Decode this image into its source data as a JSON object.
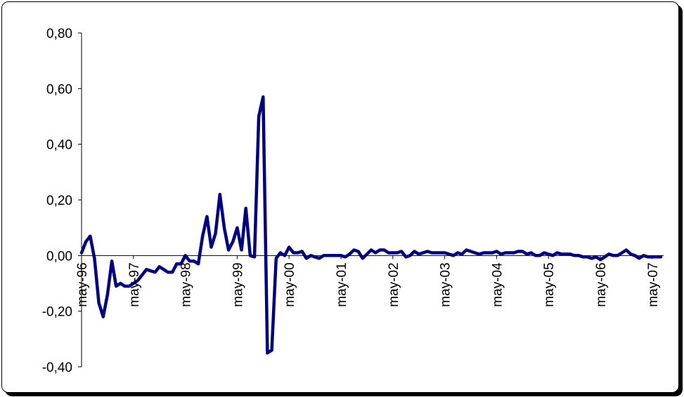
{
  "chart_data": {
    "type": "line",
    "title": "",
    "xlabel": "",
    "ylabel": "",
    "ylim": [
      -0.4,
      0.8
    ],
    "yticks": [
      {
        "value": 0.8,
        "label": "0,80"
      },
      {
        "value": 0.6,
        "label": "0,60"
      },
      {
        "value": 0.4,
        "label": "0,40"
      },
      {
        "value": 0.2,
        "label": "0,20"
      },
      {
        "value": 0.0,
        "label": "0,00"
      },
      {
        "value": -0.2,
        "label": "-0,20"
      },
      {
        "value": -0.4,
        "label": "-0,40"
      }
    ],
    "xticks": [
      {
        "index": 0,
        "label": "may-96"
      },
      {
        "index": 12,
        "label": "may-97"
      },
      {
        "index": 24,
        "label": "may-98"
      },
      {
        "index": 36,
        "label": "may-99"
      },
      {
        "index": 48,
        "label": "may-00"
      },
      {
        "index": 60,
        "label": "may-01"
      },
      {
        "index": 72,
        "label": "may-02"
      },
      {
        "index": 84,
        "label": "may-03"
      },
      {
        "index": 96,
        "label": "may-04"
      },
      {
        "index": 108,
        "label": "may-05"
      },
      {
        "index": 120,
        "label": "may-06"
      },
      {
        "index": 132,
        "label": "may-07"
      }
    ],
    "grid": false,
    "series_color": "#000080",
    "series": [
      {
        "values": [
          0.01,
          0.05,
          0.07,
          -0.01,
          -0.17,
          -0.22,
          -0.14,
          -0.02,
          -0.11,
          -0.1,
          -0.11,
          -0.11,
          -0.1,
          -0.09,
          -0.07,
          -0.05,
          -0.055,
          -0.06,
          -0.04,
          -0.05,
          -0.06,
          -0.06,
          -0.03,
          -0.03,
          0.0,
          -0.02,
          -0.02,
          -0.03,
          0.07,
          0.14,
          0.03,
          0.08,
          0.22,
          0.1,
          0.02,
          0.05,
          0.1,
          0.02,
          0.17,
          0.0,
          -0.005,
          0.5,
          0.57,
          -0.35,
          -0.34,
          -0.01,
          0.01,
          0.0,
          0.03,
          0.01,
          0.01,
          0.015,
          -0.01,
          0.0,
          -0.005,
          -0.01,
          0.0,
          0.0,
          0.0,
          0.0,
          0.0,
          -0.005,
          0.005,
          0.02,
          0.015,
          -0.01,
          0.005,
          0.02,
          0.01,
          0.02,
          0.02,
          0.01,
          0.01,
          0.01,
          0.015,
          -0.005,
          0.0,
          0.015,
          0.005,
          0.01,
          0.015,
          0.01,
          0.01,
          0.01,
          0.01,
          0.005,
          0.0,
          0.01,
          0.005,
          0.02,
          0.015,
          0.01,
          0.005,
          0.01,
          0.01,
          0.01,
          0.015,
          0.005,
          0.01,
          0.01,
          0.01,
          0.015,
          0.015,
          0.005,
          0.01,
          0.0,
          0.0,
          0.01,
          0.005,
          0.0,
          0.01,
          0.005,
          0.005,
          0.005,
          0.0,
          0.0,
          -0.005,
          -0.005,
          -0.01,
          -0.005,
          -0.015,
          -0.005,
          0.005,
          0.0,
          0.0,
          0.01,
          0.02,
          0.005,
          0.0,
          -0.01,
          0.0,
          -0.005,
          -0.005,
          -0.005,
          -0.005
        ]
      }
    ]
  }
}
